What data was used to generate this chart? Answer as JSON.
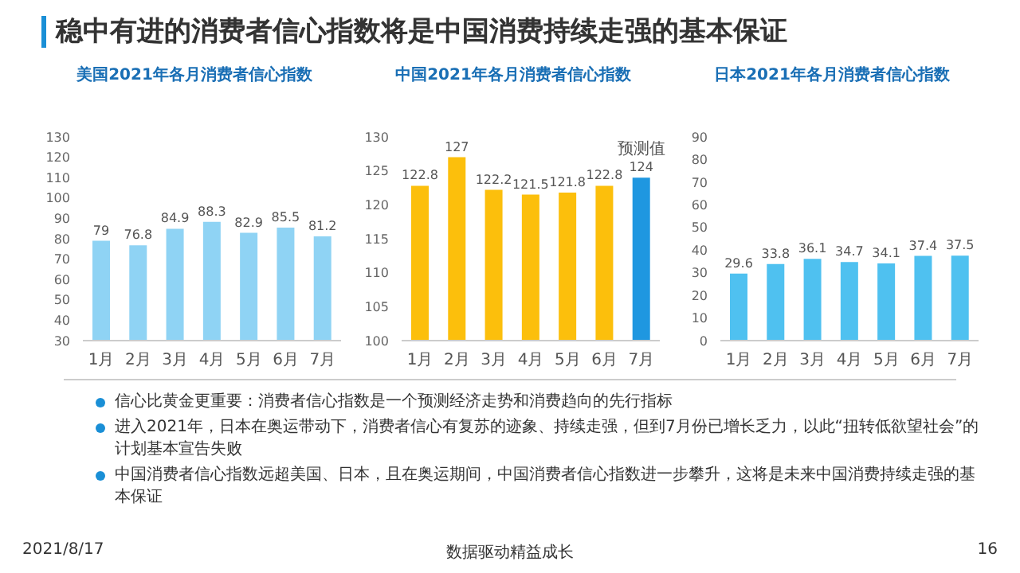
{
  "chart_data": [
    {
      "type": "bar",
      "title": "美国2021年各月消费者信心指数",
      "categories": [
        "1月",
        "2月",
        "3月",
        "4月",
        "5月",
        "6月",
        "7月"
      ],
      "values": [
        79,
        76.8,
        84.9,
        88.3,
        82.9,
        85.5,
        81.2
      ],
      "color": "#8fd3f4",
      "ylim": [
        30,
        130
      ],
      "yticks": [
        30,
        40,
        50,
        60,
        70,
        80,
        90,
        100,
        110,
        120,
        130
      ],
      "data_labels": true,
      "grid": false
    },
    {
      "type": "bar",
      "title": "中国2021年各月消费者信心指数",
      "categories": [
        "1月",
        "2月",
        "3月",
        "4月",
        "5月",
        "6月",
        "7月"
      ],
      "values": [
        122.8,
        127,
        122.2,
        121.5,
        121.8,
        122.8,
        124
      ],
      "colors": [
        "#fcbf0c",
        "#fcbf0c",
        "#fcbf0c",
        "#fcbf0c",
        "#fcbf0c",
        "#fcbf0c",
        "#1f97e0"
      ],
      "ylim": [
        100,
        130
      ],
      "yticks": [
        100,
        105,
        110,
        115,
        120,
        125,
        130
      ],
      "data_labels": true,
      "grid": false,
      "annotations": [
        {
          "text": "预测值",
          "x": "7月",
          "y": 124
        }
      ]
    },
    {
      "type": "bar",
      "title": "日本2021年各月消费者信心指数",
      "categories": [
        "1月",
        "2月",
        "3月",
        "4月",
        "5月",
        "6月",
        "7月"
      ],
      "values": [
        29.6,
        33.8,
        36.1,
        34.7,
        34.1,
        37.4,
        37.5
      ],
      "color": "#4fc1f0",
      "ylim": [
        0,
        90
      ],
      "yticks": [
        0,
        10,
        20,
        30,
        40,
        50,
        60,
        70,
        80,
        90
      ],
      "data_labels": true,
      "grid": false
    },
    {
      "type": "other",
      "title": "稳中有进的消费者信心指数将是中国消费持续走强的基本保证",
      "annotations": [
        "信心比黄金更重要：消费者信心指数是一个预测经济走势和消费趋向的先行指标",
        "进入2021年，日本在奥运带动下，消费者信心有复苏的迹象、持续走强，但到7月份已增长乏力，以此“扭转低欲望社会”的计划基本宣告失败",
        "中国消费者信心指数远超美国、日本，且在奥运期间，中国消费者信心指数进一步攀升，这将是未来中国消费持续走强的基本保证",
        "2021/8/17",
        "数据驱动精益成长",
        "16"
      ]
    }
  ]
}
